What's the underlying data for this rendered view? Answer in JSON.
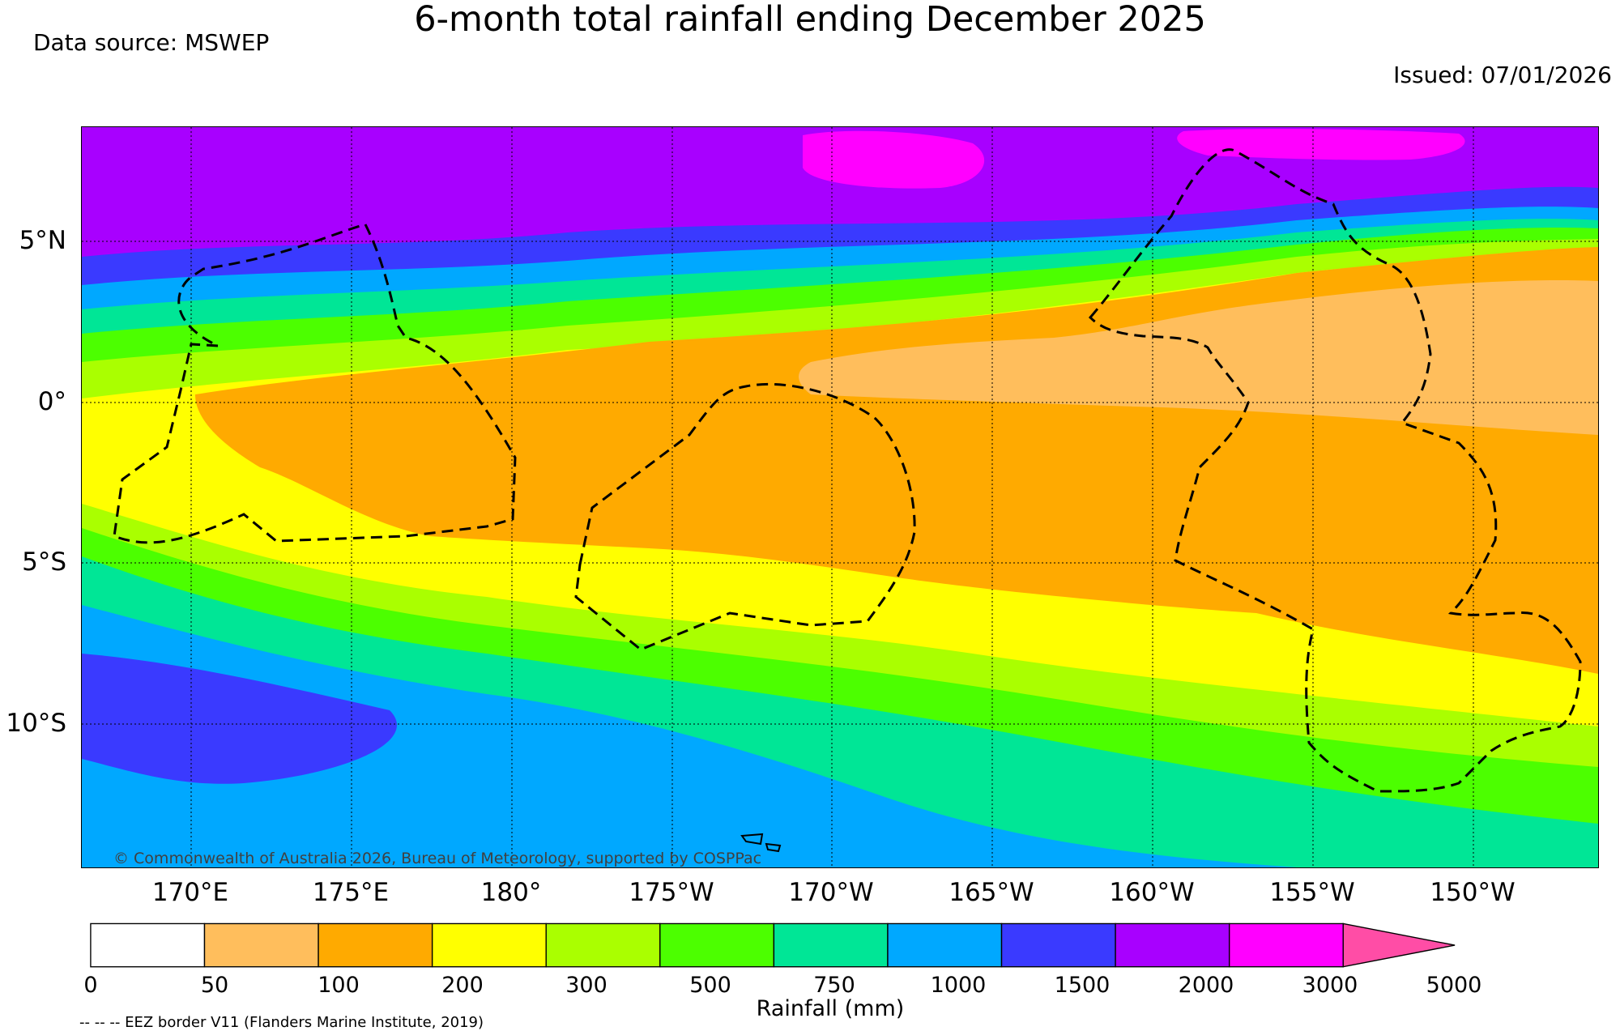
{
  "title": "6-month total rainfall ending December 2025",
  "data_source": "Data source: MSWEP",
  "issued": "Issued: 07/01/2026",
  "copyright": "© Commonwealth of Australia 2026, Bureau of Meteorology, supported by COSPPac",
  "eez_note": "-- -- -- EEZ border V11 (Flanders Marine Institute, 2019)",
  "map": {
    "lat_labels": [
      "5°N",
      "0°",
      "5°S",
      "10°S"
    ],
    "lon_labels": [
      "170°E",
      "175°E",
      "180°",
      "175°W",
      "170°W",
      "165°W",
      "160°W",
      "155°W",
      "150°W"
    ]
  },
  "colorbar": {
    "label": "Rainfall (mm)",
    "ticks": [
      "0",
      "50",
      "100",
      "200",
      "300",
      "500",
      "750",
      "1000",
      "1500",
      "2000",
      "3000",
      "5000"
    ],
    "colors": [
      "#ffffff",
      "#ffbe5c",
      "#ffaa00",
      "#ffff00",
      "#aaff00",
      "#4cff00",
      "#00e696",
      "#00a8ff",
      "#3a3aff",
      "#a800ff",
      "#ff00ff",
      "#ff4da6"
    ]
  }
}
